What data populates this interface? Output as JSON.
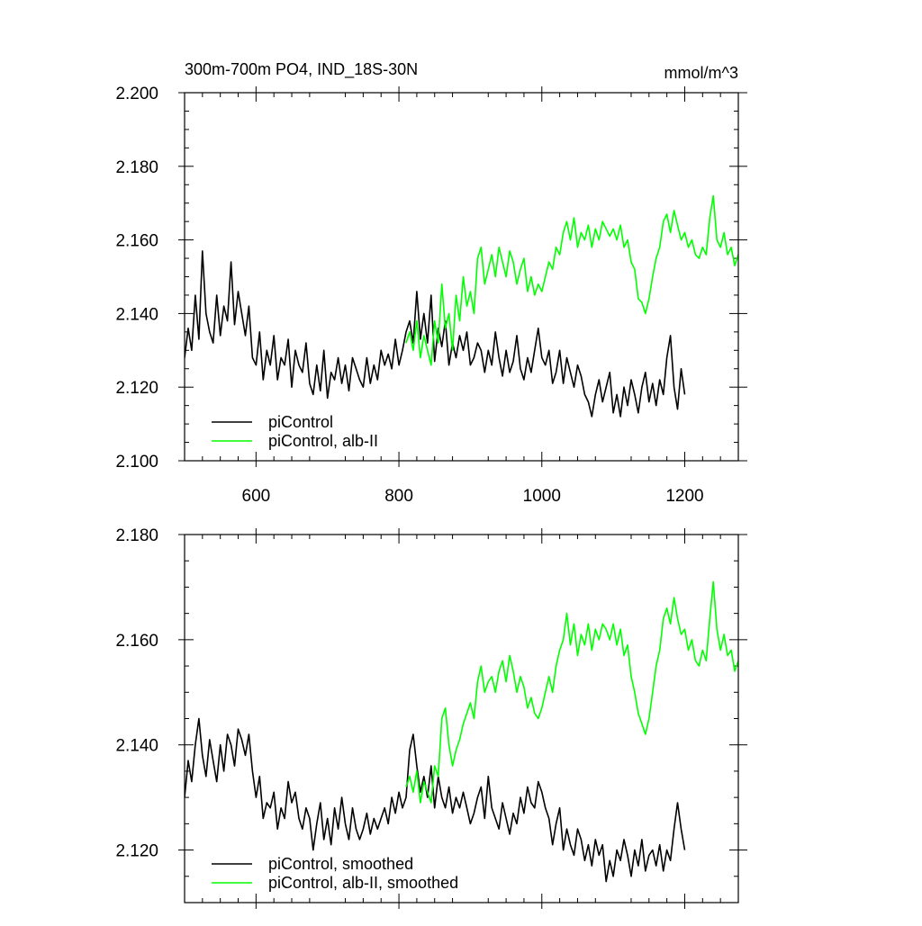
{
  "chart_data": [
    {
      "type": "line",
      "title": "300m-700m PO4, IND_18S-30N",
      "units": "mmol/m^3",
      "xlim": [
        500,
        1275
      ],
      "ylim": [
        2.1,
        2.2
      ],
      "xticks": [
        600,
        800,
        1000,
        1200
      ],
      "xtick_labels": [
        "600",
        "800",
        "1000",
        "1200"
      ],
      "yticks": [
        2.1,
        2.12,
        2.14,
        2.16,
        2.18,
        2.2
      ],
      "ytick_labels": [
        "2.100",
        "2.120",
        "2.140",
        "2.160",
        "2.180",
        "2.200"
      ],
      "grid": false,
      "legend_placement": "bottom-left",
      "series": [
        {
          "name": "piControl",
          "color": "#000000",
          "x": [
            500,
            505,
            510,
            515,
            520,
            525,
            530,
            535,
            540,
            545,
            550,
            555,
            560,
            565,
            570,
            575,
            580,
            585,
            590,
            595,
            600,
            605,
            610,
            615,
            620,
            625,
            630,
            635,
            640,
            645,
            650,
            655,
            660,
            665,
            670,
            675,
            680,
            685,
            690,
            695,
            700,
            705,
            710,
            715,
            720,
            725,
            730,
            735,
            740,
            745,
            750,
            755,
            760,
            765,
            770,
            775,
            780,
            785,
            790,
            795,
            800,
            805,
            810,
            815,
            820,
            825,
            830,
            835,
            840,
            845,
            850,
            855,
            860,
            865,
            870,
            875,
            880,
            885,
            890,
            895,
            900,
            905,
            910,
            915,
            920,
            925,
            930,
            935,
            940,
            945,
            950,
            955,
            960,
            965,
            970,
            975,
            980,
            985,
            990,
            995,
            1000,
            1005,
            1010,
            1015,
            1020,
            1025,
            1030,
            1035,
            1040,
            1045,
            1050,
            1055,
            1060,
            1065,
            1070,
            1075,
            1080,
            1085,
            1090,
            1095,
            1100,
            1105,
            1110,
            1115,
            1120,
            1125,
            1130,
            1135,
            1140,
            1145,
            1150,
            1155,
            1160,
            1165,
            1170,
            1175,
            1180,
            1185,
            1190,
            1195,
            1200
          ],
          "values": [
            2.128,
            2.136,
            2.13,
            2.145,
            2.133,
            2.157,
            2.14,
            2.135,
            2.132,
            2.145,
            2.134,
            2.142,
            2.138,
            2.154,
            2.137,
            2.146,
            2.14,
            2.134,
            2.142,
            2.128,
            2.126,
            2.135,
            2.122,
            2.13,
            2.126,
            2.134,
            2.122,
            2.128,
            2.126,
            2.133,
            2.12,
            2.13,
            2.126,
            2.124,
            2.132,
            2.121,
            2.118,
            2.126,
            2.119,
            2.13,
            2.117,
            2.124,
            2.122,
            2.128,
            2.121,
            2.126,
            2.119,
            2.128,
            2.125,
            2.122,
            2.12,
            2.128,
            2.121,
            2.126,
            2.122,
            2.13,
            2.126,
            2.129,
            2.125,
            2.133,
            2.126,
            2.13,
            2.135,
            2.138,
            2.132,
            2.146,
            2.133,
            2.14,
            2.132,
            2.145,
            2.127,
            2.136,
            2.131,
            2.138,
            2.126,
            2.132,
            2.128,
            2.134,
            2.13,
            2.135,
            2.126,
            2.128,
            2.132,
            2.13,
            2.124,
            2.13,
            2.126,
            2.135,
            2.128,
            2.123,
            2.13,
            2.124,
            2.127,
            2.134,
            2.125,
            2.122,
            2.128,
            2.124,
            2.13,
            2.136,
            2.128,
            2.126,
            2.13,
            2.121,
            2.124,
            2.13,
            2.121,
            2.128,
            2.124,
            2.12,
            2.126,
            2.123,
            2.118,
            2.116,
            2.112,
            2.118,
            2.122,
            2.116,
            2.12,
            2.124,
            2.113,
            2.118,
            2.112,
            2.12,
            2.115,
            2.122,
            2.118,
            2.113,
            2.12,
            2.124,
            2.116,
            2.121,
            2.115,
            2.122,
            2.118,
            2.128,
            2.134,
            2.12,
            2.114,
            2.125,
            2.118
          ]
        },
        {
          "name": "piControl, alb-II",
          "color": "#00ff00",
          "x": [
            810,
            815,
            820,
            825,
            830,
            835,
            840,
            845,
            850,
            855,
            860,
            865,
            870,
            875,
            880,
            885,
            890,
            895,
            900,
            905,
            910,
            915,
            920,
            925,
            930,
            935,
            940,
            945,
            950,
            955,
            960,
            965,
            970,
            975,
            980,
            985,
            990,
            995,
            1000,
            1005,
            1010,
            1015,
            1020,
            1025,
            1030,
            1035,
            1040,
            1045,
            1050,
            1055,
            1060,
            1065,
            1070,
            1075,
            1080,
            1085,
            1090,
            1095,
            1100,
            1105,
            1110,
            1115,
            1120,
            1125,
            1130,
            1135,
            1140,
            1145,
            1150,
            1155,
            1160,
            1165,
            1170,
            1175,
            1180,
            1185,
            1190,
            1195,
            1200,
            1205,
            1210,
            1215,
            1220,
            1225,
            1230,
            1235,
            1240,
            1245,
            1250,
            1255,
            1260,
            1265,
            1270,
            1275
          ],
          "values": [
            2.132,
            2.135,
            2.13,
            2.138,
            2.128,
            2.134,
            2.13,
            2.126,
            2.138,
            2.132,
            2.148,
            2.136,
            2.14,
            2.13,
            2.145,
            2.138,
            2.15,
            2.142,
            2.146,
            2.14,
            2.155,
            2.158,
            2.148,
            2.152,
            2.156,
            2.15,
            2.158,
            2.154,
            2.15,
            2.157,
            2.154,
            2.148,
            2.152,
            2.155,
            2.146,
            2.15,
            2.145,
            2.148,
            2.146,
            2.15,
            2.154,
            2.152,
            2.158,
            2.156,
            2.162,
            2.165,
            2.16,
            2.166,
            2.158,
            2.162,
            2.16,
            2.164,
            2.158,
            2.163,
            2.16,
            2.165,
            2.163,
            2.161,
            2.163,
            2.16,
            2.164,
            2.158,
            2.16,
            2.154,
            2.152,
            2.144,
            2.143,
            2.14,
            2.144,
            2.15,
            2.155,
            2.158,
            2.165,
            2.167,
            2.162,
            2.168,
            2.164,
            2.16,
            2.162,
            2.158,
            2.16,
            2.156,
            2.155,
            2.158,
            2.156,
            2.166,
            2.172,
            2.16,
            2.158,
            2.162,
            2.156,
            2.158,
            2.153,
            2.156
          ]
        }
      ]
    },
    {
      "type": "line",
      "xlim": [
        500,
        1275
      ],
      "ylim": [
        2.11,
        2.18
      ],
      "xticks": [
        600,
        800,
        1000,
        1200
      ],
      "yticks": [
        2.12,
        2.14,
        2.16,
        2.18
      ],
      "ytick_labels": [
        "2.120",
        "2.140",
        "2.160",
        "2.180"
      ],
      "grid": false,
      "legend_placement": "bottom-left",
      "series": [
        {
          "name": "piControl, smoothed",
          "color": "#000000",
          "x": [
            500,
            505,
            510,
            515,
            520,
            525,
            530,
            535,
            540,
            545,
            550,
            555,
            560,
            565,
            570,
            575,
            580,
            585,
            590,
            595,
            600,
            605,
            610,
            615,
            620,
            625,
            630,
            635,
            640,
            645,
            650,
            655,
            660,
            665,
            670,
            675,
            680,
            685,
            690,
            695,
            700,
            705,
            710,
            715,
            720,
            725,
            730,
            735,
            740,
            745,
            750,
            755,
            760,
            765,
            770,
            775,
            780,
            785,
            790,
            795,
            800,
            805,
            810,
            815,
            820,
            825,
            830,
            835,
            840,
            845,
            850,
            855,
            860,
            865,
            870,
            875,
            880,
            885,
            890,
            895,
            900,
            905,
            910,
            915,
            920,
            925,
            930,
            935,
            940,
            945,
            950,
            955,
            960,
            965,
            970,
            975,
            980,
            985,
            990,
            995,
            1000,
            1005,
            1010,
            1015,
            1020,
            1025,
            1030,
            1035,
            1040,
            1045,
            1050,
            1055,
            1060,
            1065,
            1070,
            1075,
            1080,
            1085,
            1090,
            1095,
            1100,
            1105,
            1110,
            1115,
            1120,
            1125,
            1130,
            1135,
            1140,
            1145,
            1150,
            1155,
            1160,
            1165,
            1170,
            1175,
            1180,
            1185,
            1190,
            1195,
            1200
          ],
          "values": [
            2.13,
            2.137,
            2.133,
            2.14,
            2.145,
            2.138,
            2.134,
            2.141,
            2.137,
            2.133,
            2.14,
            2.135,
            2.142,
            2.14,
            2.136,
            2.143,
            2.141,
            2.138,
            2.142,
            2.135,
            2.13,
            2.134,
            2.126,
            2.129,
            2.128,
            2.131,
            2.124,
            2.128,
            2.126,
            2.133,
            2.129,
            2.131,
            2.126,
            2.124,
            2.128,
            2.126,
            2.12,
            2.125,
            2.129,
            2.122,
            2.126,
            2.121,
            2.128,
            2.124,
            2.13,
            2.125,
            2.122,
            2.128,
            2.124,
            2.122,
            2.124,
            2.127,
            2.123,
            2.126,
            2.124,
            2.126,
            2.128,
            2.125,
            2.13,
            2.127,
            2.131,
            2.128,
            2.13,
            2.139,
            2.142,
            2.136,
            2.131,
            2.134,
            2.13,
            2.136,
            2.128,
            2.134,
            2.13,
            2.128,
            2.132,
            2.127,
            2.13,
            2.128,
            2.131,
            2.128,
            2.125,
            2.127,
            2.13,
            2.132,
            2.126,
            2.134,
            2.128,
            2.126,
            2.124,
            2.129,
            2.126,
            2.123,
            2.127,
            2.125,
            2.13,
            2.127,
            2.132,
            2.129,
            2.128,
            2.133,
            2.131,
            2.128,
            2.126,
            2.121,
            2.125,
            2.128,
            2.12,
            2.124,
            2.121,
            2.119,
            2.124,
            2.122,
            2.118,
            2.121,
            2.117,
            2.122,
            2.119,
            2.121,
            2.114,
            2.118,
            2.115,
            2.12,
            2.118,
            2.122,
            2.119,
            2.115,
            2.12,
            2.117,
            2.122,
            2.116,
            2.119,
            2.12,
            2.117,
            2.121,
            2.116,
            2.12,
            2.118,
            2.124,
            2.129,
            2.124,
            2.12
          ]
        },
        {
          "name": "piControl, alb-II, smoothed",
          "color": "#00ff00",
          "x": [
            810,
            815,
            820,
            825,
            830,
            835,
            840,
            845,
            850,
            855,
            860,
            865,
            870,
            875,
            880,
            885,
            890,
            895,
            900,
            905,
            910,
            915,
            920,
            925,
            930,
            935,
            940,
            945,
            950,
            955,
            960,
            965,
            970,
            975,
            980,
            985,
            990,
            995,
            1000,
            1005,
            1010,
            1015,
            1020,
            1025,
            1030,
            1035,
            1040,
            1045,
            1050,
            1055,
            1060,
            1065,
            1070,
            1075,
            1080,
            1085,
            1090,
            1095,
            1100,
            1105,
            1110,
            1115,
            1120,
            1125,
            1130,
            1135,
            1140,
            1145,
            1150,
            1155,
            1160,
            1165,
            1170,
            1175,
            1180,
            1185,
            1190,
            1195,
            1200,
            1205,
            1210,
            1215,
            1220,
            1225,
            1230,
            1235,
            1240,
            1245,
            1250,
            1255,
            1260,
            1265,
            1270,
            1275
          ],
          "values": [
            2.132,
            2.134,
            2.131,
            2.135,
            2.129,
            2.133,
            2.131,
            2.129,
            2.136,
            2.134,
            2.145,
            2.147,
            2.14,
            2.136,
            2.139,
            2.141,
            2.144,
            2.146,
            2.148,
            2.145,
            2.152,
            2.155,
            2.15,
            2.152,
            2.153,
            2.15,
            2.154,
            2.156,
            2.152,
            2.157,
            2.154,
            2.15,
            2.153,
            2.151,
            2.147,
            2.149,
            2.146,
            2.145,
            2.147,
            2.15,
            2.153,
            2.15,
            2.155,
            2.158,
            2.16,
            2.165,
            2.159,
            2.163,
            2.157,
            2.161,
            2.159,
            2.163,
            2.158,
            2.162,
            2.16,
            2.163,
            2.162,
            2.16,
            2.163,
            2.159,
            2.162,
            2.157,
            2.159,
            2.153,
            2.15,
            2.146,
            2.144,
            2.142,
            2.145,
            2.15,
            2.155,
            2.158,
            2.164,
            2.166,
            2.163,
            2.168,
            2.164,
            2.161,
            2.162,
            2.158,
            2.16,
            2.156,
            2.155,
            2.158,
            2.156,
            2.164,
            2.171,
            2.162,
            2.158,
            2.161,
            2.157,
            2.158,
            2.154,
            2.156
          ]
        }
      ]
    }
  ]
}
